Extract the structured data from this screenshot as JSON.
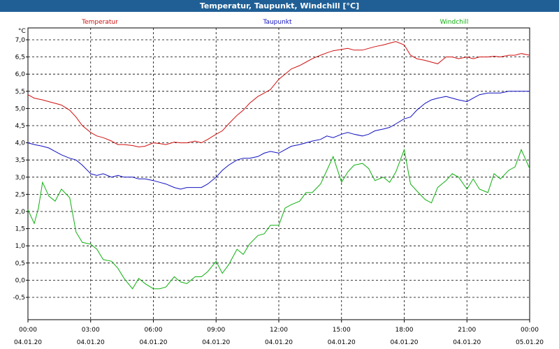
{
  "window": {
    "title": "Temperatur, Taupunkt, Windchill [°C]"
  },
  "chart_data": {
    "type": "line",
    "title": "Temperatur, Taupunkt, Windchill [°C]",
    "ylabel": "°C",
    "ylim": [
      -0.6,
      7.3
    ],
    "xlim": [
      0,
      24
    ],
    "grid": true,
    "y_ticks": [
      "7,0",
      "6,5",
      "6,0",
      "5,5",
      "5,0",
      "4,5",
      "4,0",
      "3,5",
      "3,0",
      "2,5",
      "2,0",
      "1,5",
      "1,0",
      "0,5",
      "0,0",
      "-0,5"
    ],
    "y_tick_values": [
      7.0,
      6.5,
      6.0,
      5.5,
      5.0,
      4.5,
      4.0,
      3.5,
      3.0,
      2.5,
      2.0,
      1.5,
      1.0,
      0.5,
      0.0,
      -0.5
    ],
    "x_ticks": [
      {
        "x": 0,
        "time": "00:00",
        "date": "04.01.20"
      },
      {
        "x": 3,
        "time": "03:00",
        "date": "04.01.20"
      },
      {
        "x": 6,
        "time": "06:00",
        "date": "04.01.20"
      },
      {
        "x": 9,
        "time": "09:00",
        "date": "04.01.20"
      },
      {
        "x": 12,
        "time": "12:00",
        "date": "04.01.20"
      },
      {
        "x": 15,
        "time": "15:00",
        "date": "04.01.20"
      },
      {
        "x": 18,
        "time": "18:00",
        "date": "04.01.20"
      },
      {
        "x": 21,
        "time": "21:00",
        "date": "04.01.20"
      },
      {
        "x": 24,
        "time": "00:00",
        "date": "05.01.20"
      }
    ],
    "series": [
      {
        "name": "Temperatur",
        "color": "#d01010",
        "x": [
          0,
          0.3,
          0.7,
          1.0,
          1.3,
          1.6,
          2.0,
          2.3,
          2.6,
          3.0,
          3.3,
          3.6,
          4.0,
          4.3,
          4.6,
          5.0,
          5.3,
          5.6,
          6.0,
          6.3,
          6.6,
          7.0,
          7.3,
          7.6,
          8.0,
          8.3,
          8.6,
          9.0,
          9.3,
          9.6,
          10.0,
          10.3,
          10.6,
          11.0,
          11.3,
          11.6,
          12.0,
          12.3,
          12.6,
          13.0,
          13.3,
          13.6,
          14.0,
          14.3,
          14.6,
          15.0,
          15.3,
          15.6,
          16.0,
          16.3,
          16.6,
          17.0,
          17.3,
          17.6,
          18.0,
          18.3,
          18.6,
          19.0,
          19.3,
          19.6,
          20.0,
          20.3,
          20.6,
          21.0,
          21.3,
          21.6,
          22.0,
          22.3,
          22.6,
          23.0,
          23.3,
          23.6,
          24.0
        ],
        "values": [
          5.4,
          5.3,
          5.25,
          5.2,
          5.15,
          5.1,
          4.95,
          4.75,
          4.5,
          4.3,
          4.2,
          4.15,
          4.05,
          3.95,
          3.95,
          3.92,
          3.88,
          3.9,
          4.0,
          3.98,
          3.95,
          4.02,
          4.0,
          4.0,
          4.05,
          4.0,
          4.1,
          4.25,
          4.35,
          4.55,
          4.8,
          4.95,
          5.15,
          5.35,
          5.45,
          5.55,
          5.85,
          6.0,
          6.15,
          6.25,
          6.35,
          6.45,
          6.55,
          6.62,
          6.68,
          6.72,
          6.75,
          6.7,
          6.7,
          6.75,
          6.8,
          6.85,
          6.9,
          6.95,
          6.85,
          6.55,
          6.45,
          6.4,
          6.35,
          6.3,
          6.5,
          6.5,
          6.45,
          6.5,
          6.45,
          6.5,
          6.5,
          6.52,
          6.5,
          6.55,
          6.55,
          6.6,
          6.55
        ]
      },
      {
        "name": "Taupunkt",
        "color": "#1010c0",
        "x": [
          0,
          0.3,
          0.7,
          1.0,
          1.3,
          1.6,
          2.0,
          2.3,
          2.6,
          3.0,
          3.3,
          3.6,
          4.0,
          4.3,
          4.6,
          5.0,
          5.3,
          5.6,
          6.0,
          6.3,
          6.6,
          7.0,
          7.3,
          7.6,
          8.0,
          8.3,
          8.6,
          9.0,
          9.3,
          9.6,
          10.0,
          10.3,
          10.6,
          11.0,
          11.3,
          11.6,
          12.0,
          12.3,
          12.6,
          13.0,
          13.3,
          13.6,
          14.0,
          14.3,
          14.6,
          15.0,
          15.3,
          15.6,
          16.0,
          16.3,
          16.6,
          17.0,
          17.3,
          17.6,
          18.0,
          18.3,
          18.6,
          19.0,
          19.3,
          19.6,
          20.0,
          20.3,
          20.6,
          21.0,
          21.3,
          21.6,
          22.0,
          22.3,
          22.6,
          23.0,
          23.3,
          23.6,
          24.0
        ],
        "values": [
          4.0,
          3.95,
          3.9,
          3.85,
          3.75,
          3.65,
          3.55,
          3.5,
          3.35,
          3.1,
          3.05,
          3.1,
          3.0,
          3.05,
          3.0,
          3.0,
          2.95,
          2.95,
          2.9,
          2.85,
          2.8,
          2.7,
          2.65,
          2.7,
          2.7,
          2.7,
          2.8,
          3.0,
          3.2,
          3.35,
          3.5,
          3.55,
          3.55,
          3.6,
          3.7,
          3.75,
          3.7,
          3.8,
          3.9,
          3.95,
          4.0,
          4.05,
          4.1,
          4.2,
          4.15,
          4.25,
          4.3,
          4.25,
          4.2,
          4.25,
          4.35,
          4.4,
          4.45,
          4.55,
          4.7,
          4.75,
          4.95,
          5.15,
          5.25,
          5.3,
          5.35,
          5.3,
          5.25,
          5.2,
          5.3,
          5.4,
          5.45,
          5.45,
          5.45,
          5.5,
          5.5,
          5.5,
          5.5
        ]
      },
      {
        "name": "Windchill",
        "color": "#10b010",
        "x": [
          0,
          0.3,
          0.5,
          0.7,
          1.0,
          1.3,
          1.6,
          2.0,
          2.3,
          2.6,
          3.0,
          3.3,
          3.6,
          4.0,
          4.3,
          4.6,
          5.0,
          5.3,
          5.6,
          6.0,
          6.3,
          6.6,
          7.0,
          7.3,
          7.6,
          8.0,
          8.3,
          8.6,
          9.0,
          9.3,
          9.6,
          10.0,
          10.3,
          10.6,
          11.0,
          11.3,
          11.6,
          12.0,
          12.3,
          12.6,
          13.0,
          13.3,
          13.6,
          14.0,
          14.3,
          14.6,
          15.0,
          15.3,
          15.6,
          16.0,
          16.3,
          16.6,
          17.0,
          17.3,
          17.6,
          18.0,
          18.3,
          18.6,
          19.0,
          19.3,
          19.6,
          20.0,
          20.3,
          20.6,
          21.0,
          21.3,
          21.6,
          22.0,
          22.3,
          22.6,
          23.0,
          23.3,
          23.6,
          24.0
        ],
        "values": [
          2.05,
          1.65,
          2.1,
          2.85,
          2.45,
          2.3,
          2.65,
          2.4,
          1.4,
          1.1,
          1.05,
          0.9,
          0.6,
          0.55,
          0.35,
          0.05,
          -0.25,
          0.05,
          -0.1,
          -0.25,
          -0.25,
          -0.2,
          0.1,
          -0.05,
          -0.1,
          0.1,
          0.1,
          0.25,
          0.55,
          0.2,
          0.45,
          0.9,
          0.75,
          1.05,
          1.3,
          1.35,
          1.6,
          1.6,
          2.1,
          2.2,
          2.3,
          2.55,
          2.55,
          2.8,
          3.2,
          3.6,
          2.85,
          3.15,
          3.35,
          3.4,
          3.25,
          2.9,
          3.0,
          2.85,
          3.15,
          3.8,
          2.8,
          2.6,
          2.35,
          2.25,
          2.7,
          2.9,
          3.1,
          3.0,
          2.65,
          2.95,
          2.65,
          2.55,
          3.1,
          2.95,
          3.2,
          3.3,
          3.8,
          3.25
        ]
      }
    ]
  }
}
